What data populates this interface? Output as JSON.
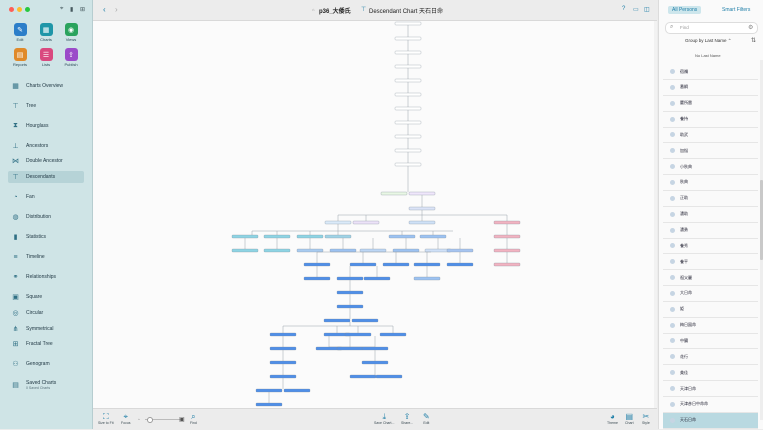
{
  "window": {
    "title": "p36_大倭氏",
    "chart_title": "Descendant Chart 天石日命"
  },
  "toolbar": {
    "edit": "Edit",
    "charts": "Charts",
    "views": "Views",
    "reports": "Reports",
    "lists": "Lists",
    "publish": "Publish"
  },
  "sidebar": {
    "items": [
      {
        "label": "Charts Overview",
        "icon": "charts-overview-icon"
      },
      {
        "label": "Tree",
        "icon": "tree-icon"
      },
      {
        "label": "Hourglass",
        "icon": "hourglass-icon"
      },
      {
        "label": "Ancestors",
        "icon": "ancestors-icon"
      },
      {
        "label": "Double Ancestor",
        "icon": "double-ancestor-icon"
      },
      {
        "label": "Descendants",
        "icon": "descendants-icon"
      },
      {
        "label": "Fan",
        "icon": "fan-icon"
      },
      {
        "label": "Distribution",
        "icon": "distribution-icon"
      },
      {
        "label": "Statistics",
        "icon": "statistics-icon"
      },
      {
        "label": "Timeline",
        "icon": "timeline-icon"
      },
      {
        "label": "Relationships",
        "icon": "relationships-icon"
      },
      {
        "label": "Square",
        "icon": "square-icon"
      },
      {
        "label": "Circular",
        "icon": "circular-icon"
      },
      {
        "label": "Symmetrical",
        "icon": "symmetrical-icon"
      },
      {
        "label": "Fractal Tree",
        "icon": "fractal-tree-icon"
      },
      {
        "label": "Genogram",
        "icon": "genogram-icon"
      },
      {
        "label": "Saved Charts",
        "icon": "saved-charts-icon"
      }
    ],
    "saved_sub": "0 Saved Charts",
    "active": "Descendants"
  },
  "bottombar": {
    "size_to_fit": "Size to Fit",
    "focus": "Focus",
    "find": "Find",
    "save_chart": "Save Chart...",
    "share": "Share...",
    "edit": "Edit",
    "theme": "Theme",
    "chart": "Chart",
    "style": "Style"
  },
  "right_panel": {
    "tab_all": "All Persons",
    "tab_filters": "Smart Filters",
    "search_placeholder": "Find",
    "group_by": "Group by Last Name",
    "section": "No Last Name",
    "persons": [
      "宿禰 ",
      "番綱",
      "麓所雷",
      "養持",
      "助武",
      "加悩",
      "小秋典",
      "秋典",
      "正助",
      "濃助",
      "濃勇",
      "養秀",
      "養平",
      "祖父麗",
      "大日命",
      "姫",
      "梅日図命",
      "中臓",
      "花行",
      "美佳",
      "天津日命",
      "天津彦日中命命",
      "天石日命"
    ],
    "selected": "天石日命"
  },
  "colors": {
    "sidebar_bg": "#cfe4e6",
    "accent": "#1f7fa8",
    "node_blue": "#4f8fe8",
    "node_cyan": "#8ed4e4",
    "node_pink": "#f2b3c1",
    "node_gray": "#d3d3d3",
    "selected_row": "#b9d9e1"
  }
}
